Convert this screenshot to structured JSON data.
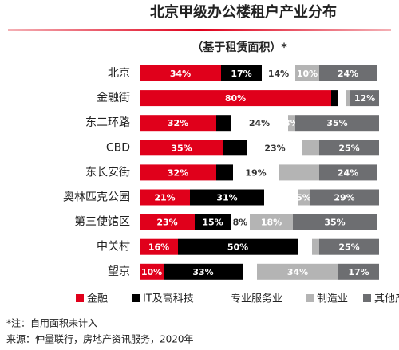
{
  "chart_data": {
    "type": "stacked-bar-horizontal",
    "title": "北京甲级办公楼租户产业分布",
    "subtitle": "（基于租赁面积）*",
    "categories": [
      "北京",
      "金融街",
      "东二环路",
      "CBD",
      "东长安街",
      "奥林匹克公园",
      "第三使馆区",
      "中关村",
      "望京"
    ],
    "xlim": [
      0,
      100
    ],
    "series": [
      {
        "name": "金融",
        "color": "#e0001b",
        "values": [
          34,
          80,
          32,
          35,
          32,
          21,
          23,
          16,
          10
        ],
        "value_labels": [
          "34%",
          "80%",
          "32%",
          "35%",
          "32%",
          "21%",
          "23%",
          "16%",
          "10%"
        ]
      },
      {
        "name": "IT及高科技",
        "color": "#000000",
        "values": [
          17,
          3,
          6,
          10,
          7,
          31,
          15,
          50,
          33
        ],
        "value_labels": [
          "17%",
          null,
          null,
          null,
          null,
          "31%",
          "15%",
          "50%",
          "33%"
        ]
      },
      {
        "name": "专业服务业",
        "color": "#ffffff",
        "values": [
          14,
          3,
          24,
          23,
          19,
          14,
          8,
          6,
          6
        ],
        "value_labels": [
          "14%",
          null,
          "24%",
          "23%",
          "19%",
          null,
          "8%",
          null,
          null
        ]
      },
      {
        "name": "制造业",
        "color": "#b4b4b4",
        "values": [
          10,
          2,
          3,
          7,
          17,
          5,
          18,
          3,
          34
        ],
        "value_labels": [
          "10%",
          null,
          "3%",
          null,
          null,
          "5%",
          "18%",
          null,
          "34%"
        ]
      },
      {
        "name": "其他产业",
        "color": "#6d6e71",
        "values": [
          24,
          12,
          35,
          25,
          24,
          29,
          35,
          25,
          17
        ],
        "value_labels": [
          "24%",
          "12%",
          "35%",
          "25%",
          "24%",
          "29%",
          "35%",
          "25%",
          "17%"
        ]
      }
    ],
    "notes": [
      "*注：自用面积未计入",
      "来源：仲量联行，房地产资讯服务，2020年"
    ]
  }
}
